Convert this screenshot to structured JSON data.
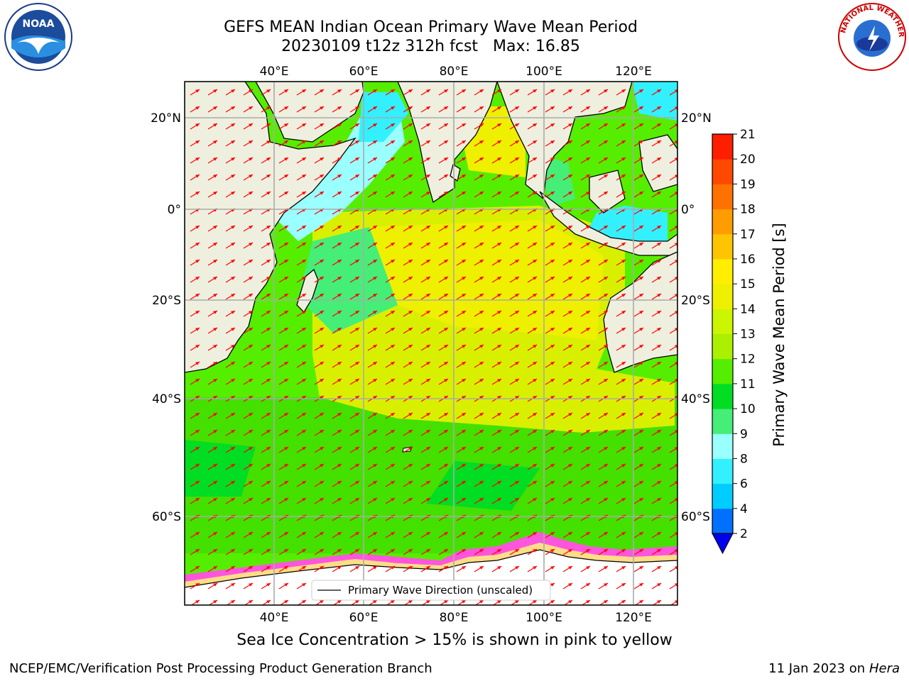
{
  "title": {
    "line1": "GEFS MEAN Indian Ocean Primary Wave Mean Period",
    "line2_prefix": "20230109 t12z 312h fcst",
    "max_label": "Max: 16.85"
  },
  "map": {
    "lon_labels": [
      "40°E",
      "60°E",
      "80°E",
      "100°E",
      "120°E"
    ],
    "lat_labels": [
      "20°N",
      "0°",
      "20°S",
      "40°S",
      "60°S"
    ],
    "legend_label": "Primary Wave Direction (unscaled)"
  },
  "colorbar": {
    "label": "Primary Wave Mean Period [s]",
    "ticks": [
      "2",
      "4",
      "6",
      "8",
      "9",
      "10",
      "11",
      "12",
      "13",
      "14",
      "15",
      "16",
      "17",
      "18",
      "19",
      "20",
      "21"
    ],
    "colors": [
      "#0070ff",
      "#00cdff",
      "#33f0ff",
      "#99ffff",
      "#44ee77",
      "#00dd22",
      "#55ee00",
      "#aaf000",
      "#ccf500",
      "#eef000",
      "#ffee00",
      "#ffc400",
      "#ff9c00",
      "#ff7200",
      "#ff4800",
      "#ff1e00"
    ],
    "extend_color": "#0000ee"
  },
  "ice_note": "Sea Ice Concentration > 15% is shown in pink to yellow",
  "footer": {
    "left": "NCEP/EMC/Verification Post Processing Product Generation Branch",
    "date": "11 Jan 2023 on ",
    "host": "Hera"
  },
  "logos": {
    "noaa_text": "NOAA",
    "nws_text": "NATIONAL WEATHER SERVICE"
  },
  "colors": {
    "land": "#efefdf",
    "arrow": "#ff0000",
    "grid": "#aaaaaa"
  }
}
